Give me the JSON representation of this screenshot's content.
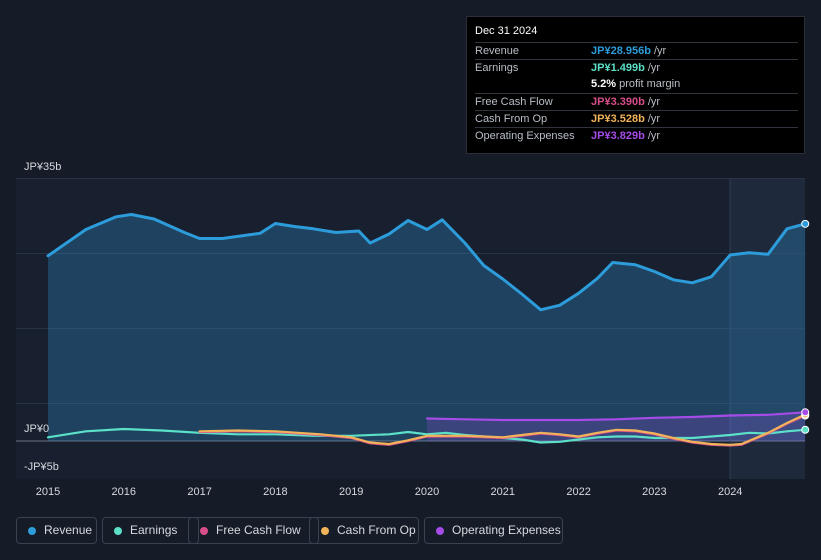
{
  "tooltip": {
    "date": "Dec 31 2024",
    "rows": [
      {
        "label": "Revenue",
        "value": "JP¥28.956b",
        "unit": "/yr",
        "color": "#2d9cdb"
      },
      {
        "label": "Earnings",
        "value": "JP¥1.499b",
        "unit": "/yr",
        "color": "#5ce0c8"
      },
      {
        "label": "",
        "value": "5.2%",
        "unit": "profit margin",
        "color": "#ffffff"
      },
      {
        "label": "Free Cash Flow",
        "value": "JP¥3.390b",
        "unit": "/yr",
        "color": "#d84e8a"
      },
      {
        "label": "Cash From Op",
        "value": "JP¥3.528b",
        "unit": "/yr",
        "color": "#f0b35a"
      },
      {
        "label": "Operating Expenses",
        "value": "JP¥3.829b",
        "unit": "/yr",
        "color": "#a54ce8"
      }
    ]
  },
  "legend": [
    {
      "label": "Revenue",
      "color": "#2d9cdb"
    },
    {
      "label": "Earnings",
      "color": "#5ce0c8"
    },
    {
      "label": "Free Cash Flow",
      "color": "#d84e8a"
    },
    {
      "label": "Cash From Op",
      "color": "#f0b35a"
    },
    {
      "label": "Operating Expenses",
      "color": "#a54ce8"
    }
  ],
  "chart_data": {
    "type": "line",
    "title": "",
    "xlabel": "",
    "ylabel": "",
    "ylim": [
      -5,
      35
    ],
    "y_tick_labels": [
      "JP¥35b",
      "JP¥0",
      "-JP¥5b"
    ],
    "x_tick_labels": [
      "2015",
      "2016",
      "2017",
      "2018",
      "2019",
      "2020",
      "2021",
      "2022",
      "2023",
      "2024"
    ],
    "forecast_region_start": 2024.0,
    "series": [
      {
        "name": "Revenue",
        "color": "#2d9cdb",
        "fill": true,
        "points": [
          [
            2015.0,
            24.7
          ],
          [
            2015.5,
            28.2
          ],
          [
            2015.9,
            29.9
          ],
          [
            2016.1,
            30.2
          ],
          [
            2016.4,
            29.6
          ],
          [
            2016.8,
            27.8
          ],
          [
            2017.0,
            27.0
          ],
          [
            2017.3,
            27.0
          ],
          [
            2017.8,
            27.7
          ],
          [
            2018.0,
            29.0
          ],
          [
            2018.25,
            28.6
          ],
          [
            2018.5,
            28.3
          ],
          [
            2018.8,
            27.8
          ],
          [
            2019.1,
            28.0
          ],
          [
            2019.25,
            26.4
          ],
          [
            2019.5,
            27.6
          ],
          [
            2019.75,
            29.4
          ],
          [
            2020.0,
            28.2
          ],
          [
            2020.2,
            29.5
          ],
          [
            2020.5,
            26.4
          ],
          [
            2020.75,
            23.4
          ],
          [
            2021.0,
            21.6
          ],
          [
            2021.25,
            19.6
          ],
          [
            2021.5,
            17.5
          ],
          [
            2021.75,
            18.1
          ],
          [
            2022.0,
            19.7
          ],
          [
            2022.25,
            21.7
          ],
          [
            2022.45,
            23.8
          ],
          [
            2022.75,
            23.5
          ],
          [
            2023.0,
            22.6
          ],
          [
            2023.25,
            21.5
          ],
          [
            2023.5,
            21.1
          ],
          [
            2023.75,
            21.9
          ],
          [
            2024.0,
            24.8
          ],
          [
            2024.25,
            25.1
          ],
          [
            2024.5,
            24.9
          ],
          [
            2024.75,
            28.3
          ],
          [
            2024.99,
            28.956
          ]
        ]
      },
      {
        "name": "Earnings",
        "color": "#5ce0c8",
        "fill": false,
        "points": [
          [
            2015.0,
            0.5
          ],
          [
            2015.5,
            1.3
          ],
          [
            2016.0,
            1.6
          ],
          [
            2016.5,
            1.4
          ],
          [
            2017.0,
            1.1
          ],
          [
            2017.5,
            0.9
          ],
          [
            2018.0,
            0.9
          ],
          [
            2018.5,
            0.7
          ],
          [
            2019.0,
            0.7
          ],
          [
            2019.5,
            0.9
          ],
          [
            2019.75,
            1.2
          ],
          [
            2020.0,
            0.9
          ],
          [
            2020.25,
            1.1
          ],
          [
            2020.5,
            0.8
          ],
          [
            2021.0,
            0.4
          ],
          [
            2021.25,
            0.2
          ],
          [
            2021.5,
            -0.2
          ],
          [
            2021.75,
            -0.1
          ],
          [
            2022.0,
            0.2
          ],
          [
            2022.25,
            0.5
          ],
          [
            2022.5,
            0.6
          ],
          [
            2022.75,
            0.6
          ],
          [
            2023.0,
            0.4
          ],
          [
            2023.5,
            0.4
          ],
          [
            2024.0,
            0.8
          ],
          [
            2024.25,
            1.1
          ],
          [
            2024.5,
            1.0
          ],
          [
            2024.75,
            1.3
          ],
          [
            2024.99,
            1.499
          ]
        ]
      },
      {
        "name": "Free Cash Flow",
        "color": "#d84e8a",
        "fill": false,
        "points": [
          [
            2017.0,
            1.2
          ],
          [
            2017.5,
            1.3
          ],
          [
            2018.0,
            1.2
          ],
          [
            2018.3,
            1.0
          ],
          [
            2018.6,
            0.8
          ],
          [
            2019.0,
            0.4
          ],
          [
            2019.25,
            -0.3
          ],
          [
            2019.5,
            -0.5
          ],
          [
            2019.75,
            0.0
          ],
          [
            2020.0,
            0.6
          ],
          [
            2020.5,
            0.6
          ],
          [
            2020.75,
            0.5
          ],
          [
            2021.0,
            0.4
          ],
          [
            2021.25,
            0.7
          ],
          [
            2021.5,
            1.0
          ],
          [
            2021.75,
            0.8
          ],
          [
            2022.0,
            0.5
          ],
          [
            2022.25,
            1.0
          ],
          [
            2022.5,
            1.4
          ],
          [
            2022.75,
            1.3
          ],
          [
            2023.0,
            0.9
          ],
          [
            2023.25,
            0.3
          ],
          [
            2023.5,
            -0.2
          ],
          [
            2023.75,
            -0.5
          ],
          [
            2024.0,
            -0.6
          ],
          [
            2024.15,
            -0.5
          ],
          [
            2024.5,
            1.0
          ],
          [
            2024.75,
            2.3
          ],
          [
            2024.99,
            3.39
          ]
        ]
      },
      {
        "name": "Cash From Op",
        "color": "#f0b35a",
        "fill": false,
        "points": [
          [
            2017.0,
            1.3
          ],
          [
            2017.5,
            1.4
          ],
          [
            2018.0,
            1.3
          ],
          [
            2018.3,
            1.1
          ],
          [
            2018.6,
            0.9
          ],
          [
            2019.0,
            0.5
          ],
          [
            2019.25,
            -0.2
          ],
          [
            2019.5,
            -0.4
          ],
          [
            2019.75,
            0.1
          ],
          [
            2020.0,
            0.7
          ],
          [
            2020.5,
            0.7
          ],
          [
            2020.75,
            0.6
          ],
          [
            2021.0,
            0.5
          ],
          [
            2021.25,
            0.8
          ],
          [
            2021.5,
            1.1
          ],
          [
            2021.75,
            0.9
          ],
          [
            2022.0,
            0.6
          ],
          [
            2022.25,
            1.1
          ],
          [
            2022.5,
            1.5
          ],
          [
            2022.75,
            1.4
          ],
          [
            2023.0,
            1.0
          ],
          [
            2023.25,
            0.4
          ],
          [
            2023.5,
            -0.1
          ],
          [
            2023.75,
            -0.4
          ],
          [
            2024.0,
            -0.5
          ],
          [
            2024.15,
            -0.4
          ],
          [
            2024.5,
            1.1
          ],
          [
            2024.75,
            2.4
          ],
          [
            2024.99,
            3.528
          ]
        ]
      },
      {
        "name": "Operating Expenses",
        "color": "#a54ce8",
        "fill": true,
        "points": [
          [
            2020.0,
            3.0
          ],
          [
            2020.5,
            2.9
          ],
          [
            2021.0,
            2.8
          ],
          [
            2021.5,
            2.8
          ],
          [
            2022.0,
            2.8
          ],
          [
            2022.5,
            2.9
          ],
          [
            2023.0,
            3.1
          ],
          [
            2023.5,
            3.2
          ],
          [
            2024.0,
            3.4
          ],
          [
            2024.5,
            3.5
          ],
          [
            2024.99,
            3.829
          ]
        ]
      }
    ]
  }
}
